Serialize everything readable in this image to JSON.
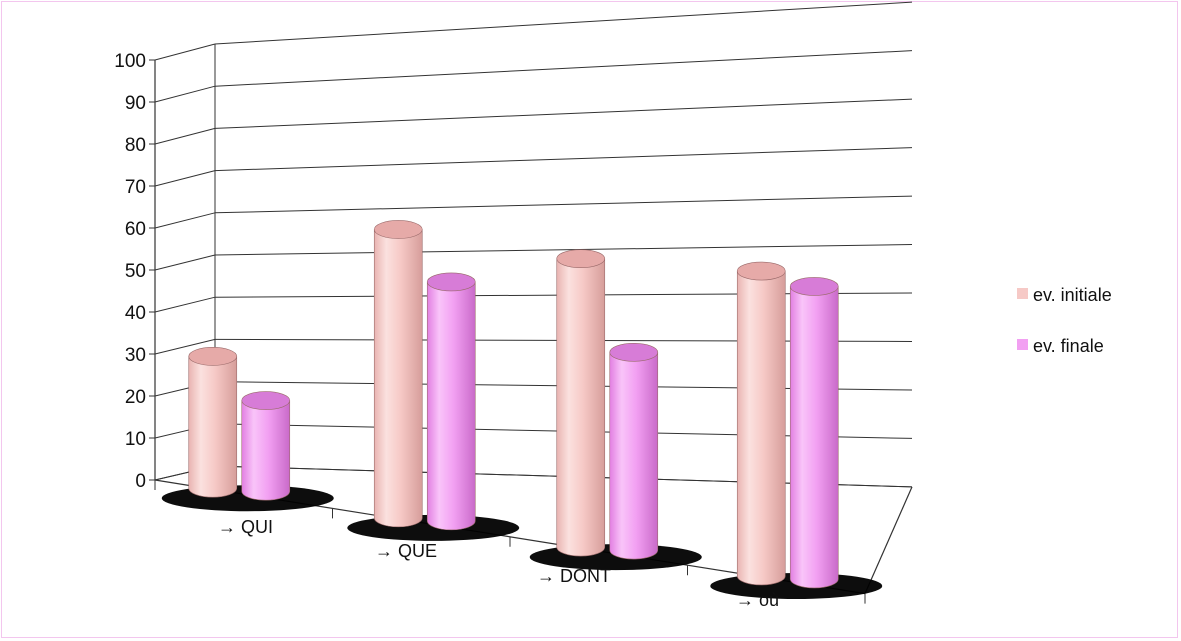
{
  "chart_data": {
    "type": "bar",
    "style": "3d-cylinder",
    "categories": [
      "→ QUI",
      "→ QUE",
      "→ DONT",
      "→ où"
    ],
    "series": [
      {
        "name": "ev. initiale",
        "values": [
          32,
          70,
          70,
          74
        ],
        "color": "#f6c9c6"
      },
      {
        "name": "ev. finale",
        "values": [
          22,
          58,
          48,
          71
        ],
        "color": "#f2a0f2"
      }
    ],
    "yticks": [
      0,
      10,
      20,
      30,
      40,
      50,
      60,
      70,
      80,
      90,
      100
    ],
    "ylim": [
      0,
      100
    ],
    "grid": true,
    "legend": "right",
    "border_color": "#f3c6ee"
  }
}
